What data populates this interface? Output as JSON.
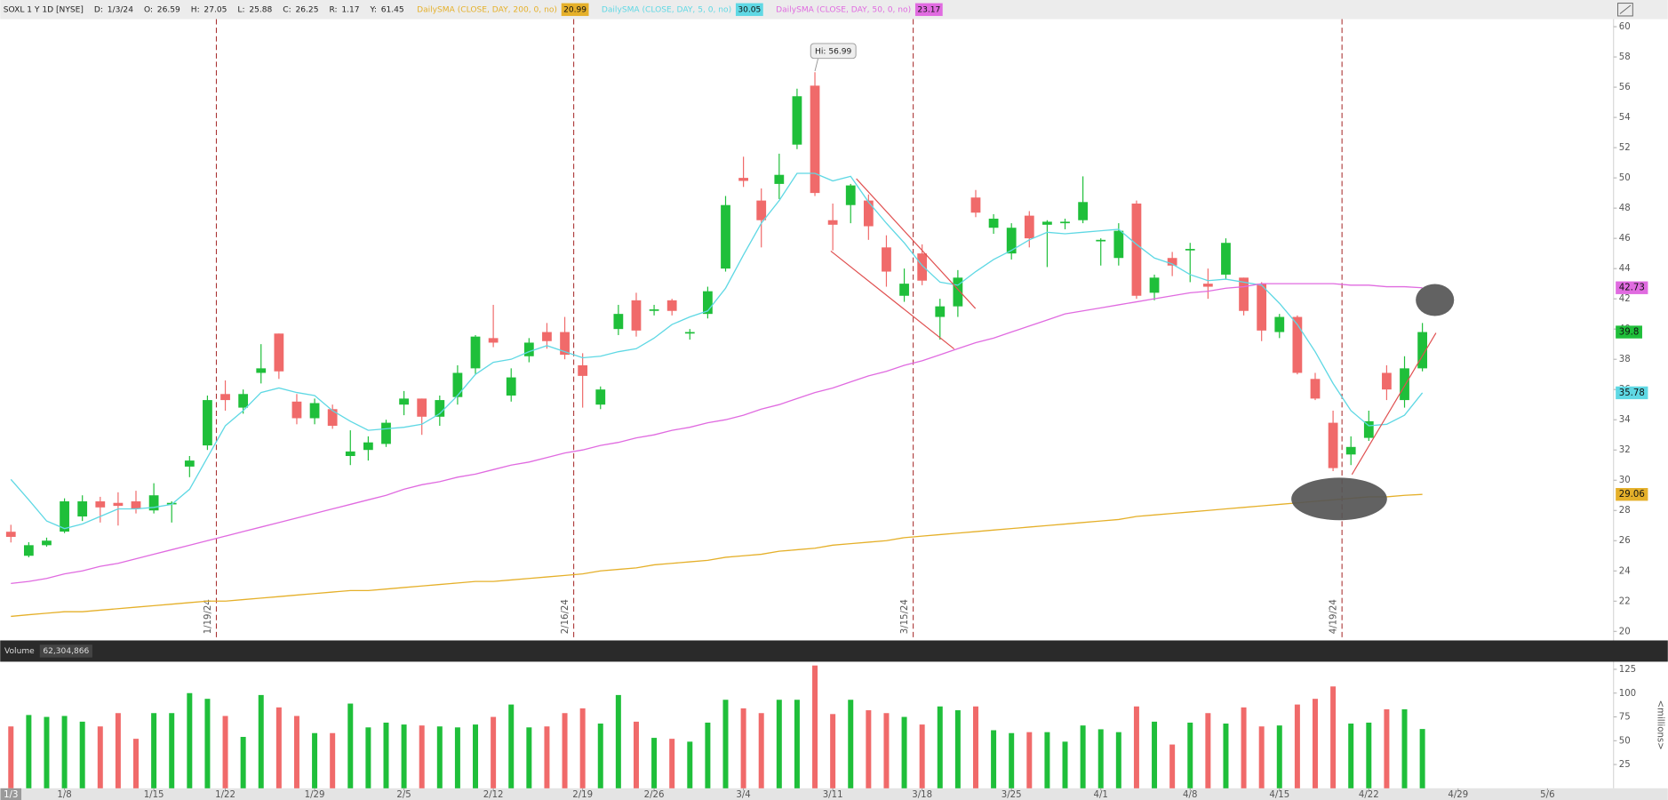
{
  "header": {
    "symbol": "SOXL 1 Y 1D [NYSE]",
    "date_label": "D:",
    "date": "1/3/24",
    "open_label": "O:",
    "high_label": "H:",
    "low_label": "L:",
    "close_label": "C:",
    "range_label": "R:",
    "range": 1.17,
    "y_label": "Y:",
    "y": 61.45
  },
  "chart_data": [
    {
      "type": "candlestick",
      "up_color": "#1fbf3a",
      "down_color": "#f06a6a",
      "open": [
        26.59,
        25.0,
        25.7,
        26.6,
        27.6,
        28.6,
        28.5,
        28.6,
        28.0,
        28.4,
        30.9,
        32.3,
        35.7,
        34.8,
        37.1,
        39.7,
        35.2,
        34.1,
        34.7,
        31.6,
        32.0,
        32.4,
        35.0,
        35.4,
        34.2,
        35.5,
        37.4,
        39.4,
        35.6,
        38.2,
        39.8,
        39.8,
        37.6,
        35.0,
        40.0,
        41.9,
        41.2,
        41.9,
        39.7,
        41.0,
        44.0,
        50.0,
        48.5,
        49.6,
        52.2,
        56.1,
        47.2,
        48.2,
        48.5,
        45.4,
        42.2,
        45.0,
        40.8,
        41.5,
        48.7,
        46.7,
        45.0,
        47.5,
        46.9,
        47.0,
        47.2,
        45.8,
        44.7,
        48.3,
        42.4,
        44.7,
        45.2,
        43.0,
        43.6,
        43.4,
        43.0,
        39.8,
        40.8,
        36.7,
        33.8,
        31.7,
        32.8,
        37.1,
        35.3,
        37.4
      ],
      "high": [
        27.05,
        25.9,
        26.2,
        28.8,
        29.0,
        28.9,
        29.2,
        29.3,
        29.8,
        28.6,
        31.6,
        35.6,
        36.6,
        36.0,
        39.0,
        39.7,
        35.7,
        35.4,
        35.0,
        33.3,
        32.9,
        34.0,
        35.9,
        35.4,
        35.6,
        37.6,
        39.6,
        41.6,
        37.4,
        39.4,
        40.4,
        40.8,
        38.4,
        36.2,
        41.6,
        42.4,
        41.6,
        42.0,
        40.0,
        42.8,
        48.8,
        51.4,
        49.3,
        51.6,
        55.9,
        56.99,
        48.3,
        49.6,
        48.9,
        46.2,
        44.0,
        45.6,
        42.0,
        43.9,
        49.2,
        47.6,
        47.0,
        47.8,
        47.2,
        47.3,
        50.1,
        46.0,
        47.0,
        48.5,
        43.6,
        45.1,
        45.7,
        44.0,
        46.0,
        43.4,
        43.1,
        41.0,
        40.9,
        37.1,
        34.6,
        32.9,
        34.6,
        37.6,
        38.2,
        40.4
      ],
      "low": [
        25.88,
        24.9,
        25.6,
        26.5,
        27.3,
        27.2,
        27.0,
        27.8,
        27.8,
        27.2,
        30.2,
        32.0,
        34.6,
        34.4,
        36.4,
        36.7,
        33.7,
        33.7,
        33.4,
        31.0,
        31.3,
        32.2,
        34.3,
        33.0,
        33.6,
        35.0,
        37.0,
        38.8,
        35.2,
        37.8,
        38.7,
        38.0,
        34.8,
        34.7,
        39.6,
        39.5,
        40.9,
        40.9,
        39.3,
        40.7,
        43.8,
        49.4,
        45.4,
        48.6,
        51.9,
        48.8,
        45.2,
        47.0,
        45.9,
        42.8,
        41.8,
        42.9,
        39.3,
        40.8,
        47.4,
        46.3,
        44.6,
        45.4,
        44.1,
        46.6,
        47.0,
        44.2,
        44.2,
        42.0,
        41.9,
        43.5,
        43.1,
        42.0,
        43.3,
        40.9,
        39.2,
        39.4,
        37.0,
        35.3,
        30.6,
        31.0,
        32.6,
        35.3,
        34.8,
        37.2
      ],
      "close": [
        26.25,
        25.7,
        26.0,
        28.6,
        28.6,
        28.2,
        28.3,
        28.1,
        29.0,
        28.5,
        31.3,
        35.3,
        35.3,
        35.7,
        37.4,
        37.2,
        34.1,
        35.1,
        33.6,
        31.9,
        32.5,
        33.8,
        35.4,
        34.2,
        35.3,
        37.1,
        39.5,
        39.1,
        36.8,
        39.1,
        39.2,
        38.3,
        36.9,
        36.0,
        41.0,
        39.9,
        41.3,
        41.2,
        39.8,
        42.5,
        48.2,
        49.8,
        47.2,
        50.2,
        55.4,
        49.0,
        46.9,
        49.5,
        46.8,
        43.8,
        43.0,
        43.2,
        41.5,
        43.4,
        47.7,
        47.3,
        46.7,
        46.0,
        47.1,
        47.1,
        48.4,
        45.9,
        46.5,
        42.2,
        43.4,
        44.2,
        45.3,
        42.8,
        45.7,
        41.2,
        39.9,
        40.8,
        37.1,
        35.4,
        30.8,
        32.2,
        33.9,
        36.0,
        37.4,
        39.8
      ],
      "series": [
        {
          "name": "DailySMA (CLOSE, DAY, 200, 0, no)",
          "color": "#e5b02a",
          "values": [
            20.99,
            21.1,
            21.2,
            21.3,
            21.3,
            21.4,
            21.5,
            21.6,
            21.7,
            21.8,
            21.9,
            22.0,
            22.0,
            22.1,
            22.2,
            22.3,
            22.4,
            22.5,
            22.6,
            22.7,
            22.7,
            22.8,
            22.9,
            23.0,
            23.1,
            23.2,
            23.3,
            23.3,
            23.4,
            23.5,
            23.6,
            23.7,
            23.8,
            24.0,
            24.1,
            24.2,
            24.4,
            24.5,
            24.6,
            24.7,
            24.9,
            25.0,
            25.1,
            25.3,
            25.4,
            25.5,
            25.7,
            25.8,
            25.9,
            26.0,
            26.2,
            26.3,
            26.4,
            26.5,
            26.6,
            26.7,
            26.8,
            26.9,
            27.0,
            27.1,
            27.2,
            27.3,
            27.4,
            27.6,
            27.7,
            27.8,
            27.9,
            28.0,
            28.1,
            28.2,
            28.3,
            28.4,
            28.5,
            28.6,
            28.7,
            28.8,
            28.9,
            28.9,
            29.0,
            29.06
          ]
        },
        {
          "name": "DailySMA (CLOSE, DAY, 5, 0, no)",
          "color": "#5fd8e4",
          "values": [
            30.05,
            28.7,
            27.3,
            26.8,
            27.1,
            27.6,
            28.1,
            28.1,
            28.2,
            28.4,
            29.4,
            31.5,
            33.6,
            34.6,
            35.8,
            36.1,
            35.8,
            35.6,
            34.6,
            33.9,
            33.3,
            33.4,
            33.5,
            33.7,
            34.4,
            35.6,
            37.0,
            37.8,
            38.0,
            38.5,
            38.9,
            38.5,
            38.1,
            38.2,
            38.5,
            38.7,
            39.4,
            40.3,
            40.8,
            41.2,
            42.7,
            44.9,
            47.0,
            48.5,
            50.3,
            50.3,
            49.8,
            50.1,
            48.4,
            47.0,
            45.7,
            44.2,
            43.1,
            42.9,
            43.8,
            44.6,
            45.2,
            45.9,
            46.4,
            46.3,
            46.4,
            46.5,
            46.6,
            45.6,
            44.7,
            44.3,
            43.6,
            43.2,
            43.3,
            43.1,
            42.9,
            41.7,
            40.3,
            38.5,
            36.4,
            34.6,
            33.6,
            33.7,
            34.3,
            35.78
          ]
        },
        {
          "name": "DailySMA (CLOSE, DAY, 50, 0, no)",
          "color": "#e06be0",
          "values": [
            23.17,
            23.3,
            23.5,
            23.8,
            24.0,
            24.3,
            24.5,
            24.8,
            25.1,
            25.4,
            25.7,
            26.0,
            26.3,
            26.6,
            26.9,
            27.2,
            27.5,
            27.8,
            28.1,
            28.4,
            28.7,
            29.0,
            29.4,
            29.7,
            29.9,
            30.2,
            30.4,
            30.7,
            31.0,
            31.2,
            31.5,
            31.8,
            32.0,
            32.3,
            32.5,
            32.8,
            33.0,
            33.3,
            33.5,
            33.8,
            34.0,
            34.3,
            34.7,
            35.0,
            35.4,
            35.8,
            36.1,
            36.5,
            36.9,
            37.2,
            37.6,
            37.9,
            38.3,
            38.7,
            39.1,
            39.4,
            39.8,
            40.2,
            40.6,
            41.0,
            41.2,
            41.4,
            41.6,
            41.8,
            42.0,
            42.2,
            42.4,
            42.5,
            42.7,
            42.8,
            43.0,
            43.0,
            43.0,
            43.0,
            43.0,
            42.9,
            42.9,
            42.8,
            42.8,
            42.73
          ]
        }
      ],
      "xlim": [
        -0.6,
        89.7
      ],
      "ylim": [
        19.4,
        60.5
      ],
      "yticks": [
        20,
        22,
        24,
        26,
        28,
        30,
        32,
        34,
        36,
        38,
        40,
        42,
        44,
        46,
        48,
        50,
        52,
        54,
        56,
        58,
        60
      ],
      "annotation": {
        "text": "Hi:",
        "index": 45
      },
      "events": [
        {
          "label": "1/19/24",
          "index": 11
        },
        {
          "label": "2/16/24",
          "index": 31
        },
        {
          "label": "3/15/24",
          "index": 50
        },
        {
          "label": "4/19/24",
          "index": 74
        }
      ]
    },
    {
      "type": "bar",
      "title": "Volume",
      "readout": "62,304,866",
      "ylabel": "<millions>",
      "up_color": "#1fbf3a",
      "down_color": "#f06a6a",
      "values": [
        65,
        77,
        75,
        76,
        70,
        65,
        79,
        52,
        79,
        79,
        100,
        94,
        76,
        54,
        98,
        85,
        76,
        58,
        58,
        89,
        64,
        69,
        67,
        66,
        65,
        64,
        67,
        75,
        88,
        64,
        65,
        79,
        84,
        68,
        98,
        70,
        53,
        52,
        49,
        69,
        93,
        84,
        79,
        93,
        93,
        129,
        78,
        93,
        82,
        79,
        75,
        67,
        86,
        82,
        86,
        61,
        58,
        59,
        59,
        49,
        66,
        62,
        59,
        86,
        70,
        46,
        69,
        79,
        68,
        85,
        65,
        66,
        88,
        94,
        107,
        68,
        69,
        83,
        83,
        62.3
      ],
      "xlim": [
        -0.6,
        89.7
      ],
      "ylim": [
        0,
        133
      ],
      "yticks": [
        25,
        50,
        75,
        100,
        125
      ],
      "xticks": [
        {
          "value": 0,
          "label": "1/3"
        },
        {
          "value": 3,
          "label": "1/8"
        },
        {
          "value": 8,
          "label": "1/15"
        },
        {
          "value": 12,
          "label": "1/22"
        },
        {
          "value": 17,
          "label": "1/29"
        },
        {
          "value": 22,
          "label": "2/5"
        },
        {
          "value": 27,
          "label": "2/12"
        },
        {
          "value": 32,
          "label": "2/19"
        },
        {
          "value": 36,
          "label": "2/26"
        },
        {
          "value": 41,
          "label": "3/4"
        },
        {
          "value": 46,
          "label": "3/11"
        },
        {
          "value": 51,
          "label": "3/18"
        },
        {
          "value": 56,
          "label": "3/25"
        },
        {
          "value": 61,
          "label": "4/1"
        },
        {
          "value": 66,
          "label": "4/8"
        },
        {
          "value": 71,
          "label": "4/15"
        },
        {
          "value": 76,
          "label": "4/22"
        },
        {
          "value": 81,
          "label": "4/29"
        },
        {
          "value": 86,
          "label": "5/6"
        }
      ]
    }
  ]
}
